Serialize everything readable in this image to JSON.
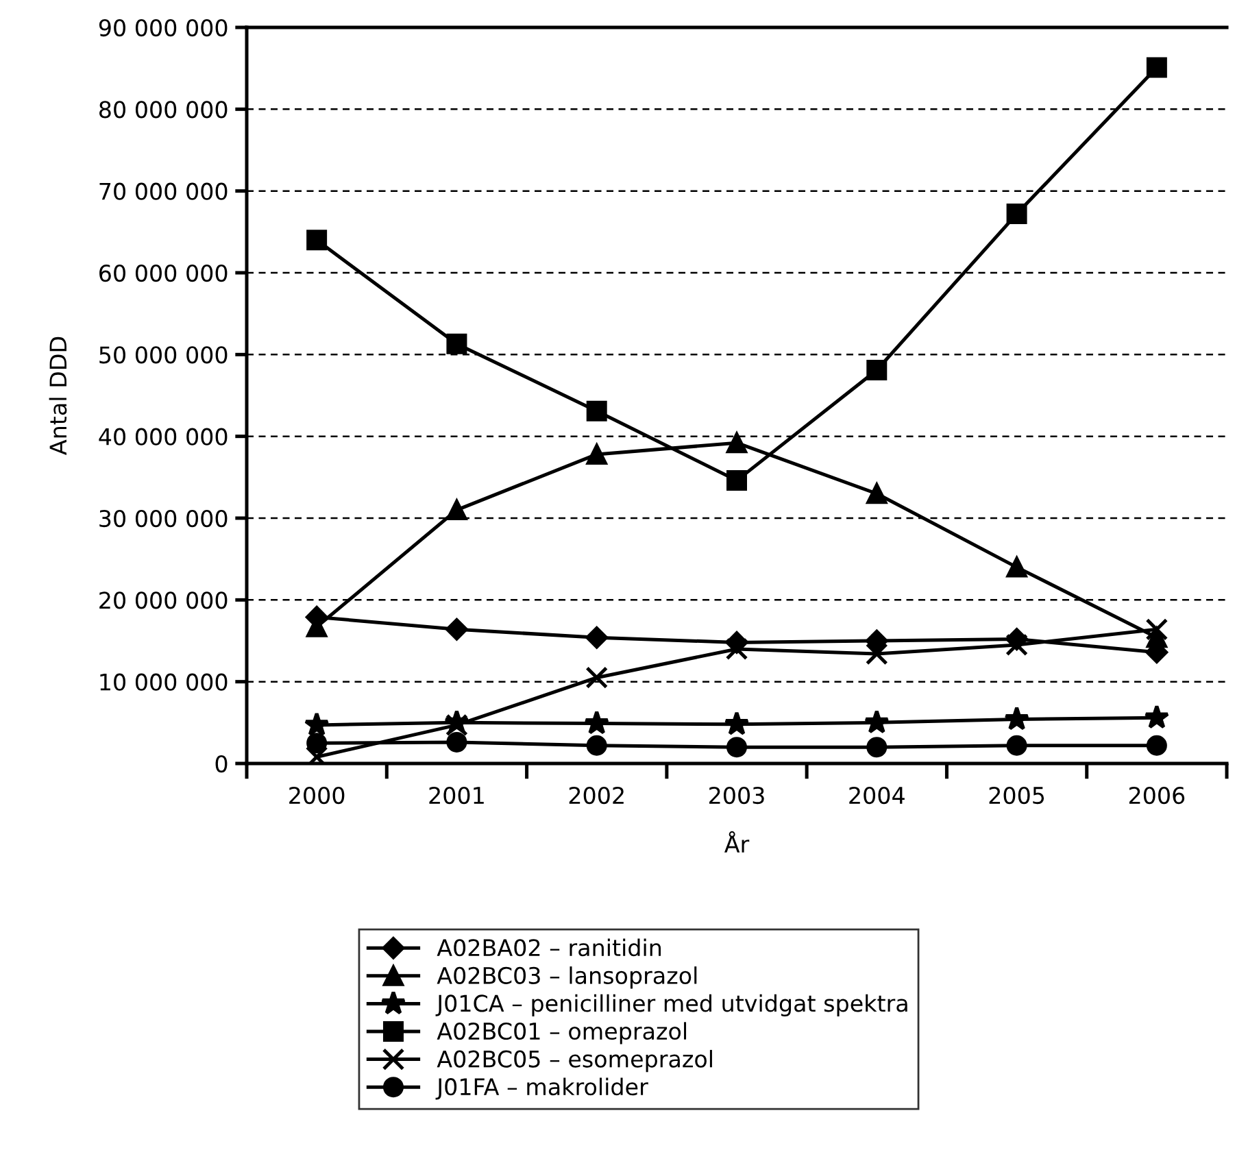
{
  "chart_data": {
    "type": "line",
    "xlabel": "År",
    "ylabel": "Antal DDD",
    "categories": [
      "2000",
      "2001",
      "2002",
      "2003",
      "2004",
      "2005",
      "2006"
    ],
    "ylim": [
      0,
      90000000
    ],
    "yticks": [
      {
        "value": 0,
        "label": "0"
      },
      {
        "value": 10000000,
        "label": "10 000 000"
      },
      {
        "value": 20000000,
        "label": "20 000 000"
      },
      {
        "value": 30000000,
        "label": "30 000 000"
      },
      {
        "value": 40000000,
        "label": "40 000 000"
      },
      {
        "value": 50000000,
        "label": "50 000 000"
      },
      {
        "value": 60000000,
        "label": "60 000 000"
      },
      {
        "value": 70000000,
        "label": "70 000 000"
      },
      {
        "value": 80000000,
        "label": "80 000 000"
      },
      {
        "value": 90000000,
        "label": "90 000 000"
      }
    ],
    "grid": "y",
    "legend": "bottom",
    "line_style": "solid",
    "series": [
      {
        "name": "A02BA02 – ranitidin",
        "color": "#000000",
        "marker": "diamond",
        "values": [
          17900000,
          16400000,
          15400000,
          14800000,
          15000000,
          15200000,
          13600000
        ]
      },
      {
        "name": "A02BC03 – lansoprazol",
        "color": "#000000",
        "marker": "triangle",
        "values": [
          16700000,
          31000000,
          37800000,
          39200000,
          33000000,
          24000000,
          15400000
        ]
      },
      {
        "name": "J01CA – penicilliner med utvidgat spektra",
        "color": "#000000",
        "marker": "star",
        "values": [
          4700000,
          5000000,
          4900000,
          4800000,
          5000000,
          5400000,
          5600000
        ]
      },
      {
        "name": "A02BC01 – omeprazol",
        "color": "#000000",
        "marker": "square",
        "values": [
          64000000,
          51300000,
          43100000,
          34600000,
          48100000,
          67200000,
          85100000
        ]
      },
      {
        "name": "A02BC05 – esomeprazol",
        "color": "#000000",
        "marker": "cross",
        "values": [
          800000,
          4700000,
          10500000,
          14000000,
          13400000,
          14500000,
          16400000
        ]
      },
      {
        "name": "J01FA – makrolider",
        "color": "#000000",
        "marker": "circle",
        "values": [
          2500000,
          2600000,
          2200000,
          2000000,
          2000000,
          2200000,
          2200000
        ]
      }
    ]
  }
}
